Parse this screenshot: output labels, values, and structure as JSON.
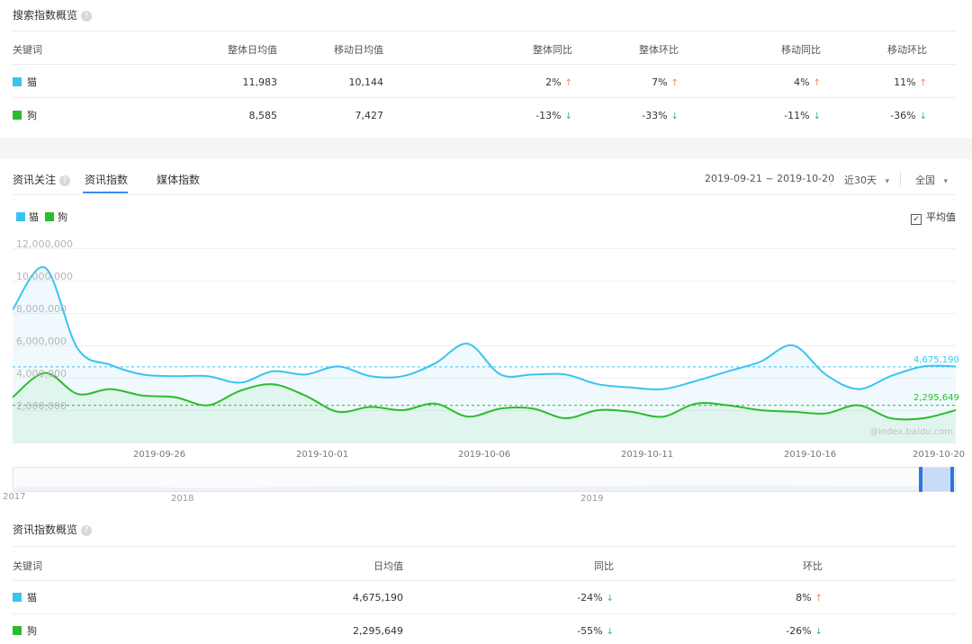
{
  "search_overview": {
    "title": "搜索指数概览",
    "headers": [
      "关键词",
      "整体日均值",
      "移动日均值",
      "整体同比",
      "整体环比",
      "移动同比",
      "移动环比"
    ],
    "rows": [
      {
        "keyword": "猫",
        "color": "#3ac3f0",
        "overall_avg": "11,983",
        "mobile_avg": "10,144",
        "overall_yoy": "2%",
        "overall_yoy_dir": "up",
        "overall_mom": "7%",
        "overall_mom_dir": "up",
        "mobile_yoy": "4%",
        "mobile_yoy_dir": "up",
        "mobile_mom": "11%",
        "mobile_mom_dir": "up"
      },
      {
        "keyword": "狗",
        "color": "#2bbd2b",
        "overall_avg": "8,585",
        "mobile_avg": "7,427",
        "overall_yoy": "-13%",
        "overall_yoy_dir": "down",
        "overall_mom": "-33%",
        "overall_mom_dir": "down",
        "mobile_yoy": "-11%",
        "mobile_yoy_dir": "down",
        "mobile_mom": "-36%",
        "mobile_mom_dir": "down"
      }
    ]
  },
  "news_section": {
    "label": "资讯关注",
    "tabs": [
      "资讯指数",
      "媒体指数"
    ],
    "date_range": "2019-09-21 ~ 2019-10-20",
    "period": "近30天",
    "region": "全国",
    "avg_toggle_label": "平均值",
    "watermark": "@index.baidu.com",
    "arrow_up": "↑",
    "arrow_down": "↓",
    "caret": "▾",
    "check": "✓"
  },
  "chart_data": {
    "type": "line",
    "x": [
      "2019-09-21",
      "2019-09-22",
      "2019-09-23",
      "2019-09-24",
      "2019-09-25",
      "2019-09-26",
      "2019-09-27",
      "2019-09-28",
      "2019-09-29",
      "2019-09-30",
      "2019-10-01",
      "2019-10-02",
      "2019-10-03",
      "2019-10-04",
      "2019-10-05",
      "2019-10-06",
      "2019-10-07",
      "2019-10-08",
      "2019-10-09",
      "2019-10-10",
      "2019-10-11",
      "2019-10-12",
      "2019-10-13",
      "2019-10-14",
      "2019-10-15",
      "2019-10-16",
      "2019-10-17",
      "2019-10-18",
      "2019-10-19",
      "2019-10-20"
    ],
    "x_tick_labels": [
      "2019-09-26",
      "2019-10-01",
      "2019-10-06",
      "2019-10-11",
      "2019-10-16",
      "2019-10-20"
    ],
    "y_tick_labels": [
      "2,000,000",
      "4,000,000",
      "6,000,000",
      "8,000,000",
      "10,000,000",
      "12,000,000"
    ],
    "ylim": [
      0,
      12000000
    ],
    "series": [
      {
        "name": "猫",
        "color": "#3ac3f0",
        "values": [
          8200000,
          10800000,
          5800000,
          4800000,
          4200000,
          4100000,
          4100000,
          3700000,
          4400000,
          4200000,
          4700000,
          4100000,
          4100000,
          4900000,
          6100000,
          4200000,
          4200000,
          4200000,
          3600000,
          3400000,
          3300000,
          3800000,
          4400000,
          5000000,
          6000000,
          4200000,
          3300000,
          4100000,
          4700000,
          4700000
        ],
        "average": 4675190,
        "average_label": "4,675,190"
      },
      {
        "name": "狗",
        "color": "#2bbd2b",
        "values": [
          2800000,
          4300000,
          3000000,
          3300000,
          2900000,
          2800000,
          2300000,
          3200000,
          3600000,
          2900000,
          1900000,
          2200000,
          2000000,
          2400000,
          1600000,
          2100000,
          2100000,
          1500000,
          2000000,
          1900000,
          1600000,
          2400000,
          2300000,
          2000000,
          1900000,
          1800000,
          2300000,
          1500000,
          1500000,
          2000000
        ],
        "average": 2295649,
        "average_label": "2,295,649"
      }
    ],
    "legend": "top-left"
  },
  "range_slider": {
    "labels": [
      "2017",
      "2018",
      "2019"
    ]
  },
  "news_overview": {
    "title": "资讯指数概览",
    "headers": [
      "关键词",
      "日均值",
      "同比",
      "环比"
    ],
    "rows": [
      {
        "keyword": "猫",
        "color": "#3ac3f0",
        "avg": "4,675,190",
        "yoy": "-24%",
        "yoy_dir": "down",
        "mom": "8%",
        "mom_dir": "up"
      },
      {
        "keyword": "狗",
        "color": "#2bbd2b",
        "avg": "2,295,649",
        "yoy": "-55%",
        "yoy_dir": "down",
        "mom": "-26%",
        "mom_dir": "down"
      }
    ]
  }
}
